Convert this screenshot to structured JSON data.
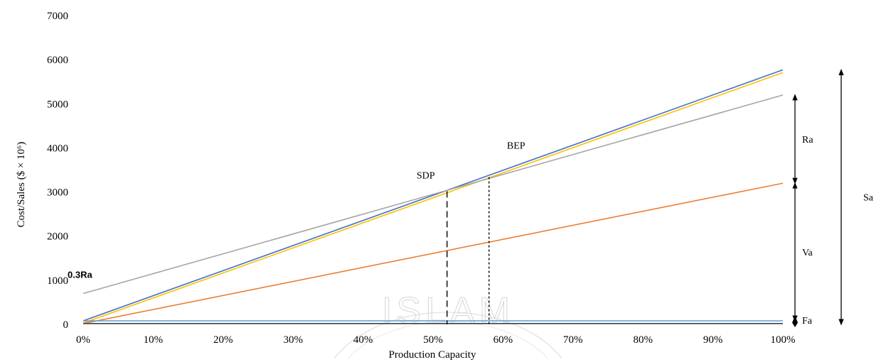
{
  "chart_data": {
    "type": "line",
    "xlabel": "Production Capacity",
    "ylabel": "Cost/Sales ($ × 10⁶)",
    "x": [
      0,
      100
    ],
    "x_tick_labels": [
      "0%",
      "10%",
      "20%",
      "30%",
      "40%",
      "50%",
      "60%",
      "70%",
      "80%",
      "90%",
      "100%"
    ],
    "x_ticks": [
      0,
      10,
      20,
      30,
      40,
      50,
      60,
      70,
      80,
      90,
      100
    ],
    "ylim": [
      0,
      7000
    ],
    "y_ticks": [
      0,
      1000,
      2000,
      3000,
      4000,
      5000,
      6000,
      7000
    ],
    "y_tick_labels": [
      "0",
      "1000",
      "2000",
      "3000",
      "4000",
      "5000",
      "6000",
      "7000"
    ],
    "grid": false,
    "legend": "none",
    "series": [
      {
        "color": "#4472c4",
        "x": [
          0,
          100
        ],
        "values": [
          80,
          5770
        ]
      },
      {
        "color": "#ffc000",
        "x": [
          0,
          100
        ],
        "values": [
          30,
          5710
        ]
      },
      {
        "color": "#a5a5a5",
        "x": [
          0,
          100
        ],
        "values": [
          700,
          5200
        ]
      },
      {
        "color": "#ed7d31",
        "x": [
          0,
          100
        ],
        "values": [
          20,
          3200
        ]
      },
      {
        "color": "#5b9bd5",
        "x": [
          0,
          100
        ],
        "values": [
          80,
          80
        ]
      },
      {
        "color": "#404040",
        "x": [
          0,
          100
        ],
        "values": [
          20,
          20
        ]
      }
    ],
    "annotations": {
      "sdp": {
        "label": "SDP",
        "x": 52,
        "y": 3020
      },
      "bep": {
        "label": "BEP",
        "x": 58,
        "y": 3340
      },
      "low_label": {
        "label": "0.3Ra",
        "x": 0,
        "y": 700
      },
      "ra": {
        "label": "Ra",
        "from": 3200,
        "to": 5200
      },
      "va": {
        "label": "Va",
        "from": 80,
        "to": 3200
      },
      "fa": {
        "label": "Fa",
        "from": 0,
        "to": 80
      },
      "sa": {
        "label": "Sa",
        "from": 0,
        "to": 5770
      }
    },
    "watermark": "ISLAM"
  }
}
